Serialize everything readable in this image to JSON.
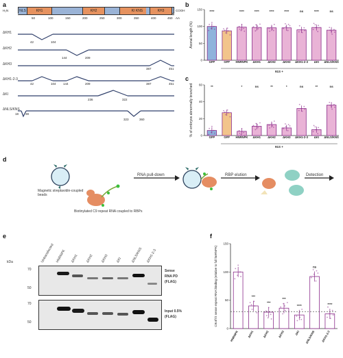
{
  "panels": {
    "a": "a",
    "b": "b",
    "c": "c",
    "d": "d",
    "e": "e",
    "f": "f"
  },
  "panel_a": {
    "n_term": "H₂N",
    "c_term": "COOH",
    "domains": [
      "NLS",
      "KH1",
      "KH2",
      "KI",
      "KNS",
      "KH3"
    ],
    "axis_ticks": [
      "50",
      "100",
      "150",
      "200",
      "250",
      "300",
      "350",
      "400",
      "450"
    ],
    "axis_unit": "AA",
    "constructs": [
      {
        "name": "ΔKH1",
        "labels": [
          "42",
          "104"
        ]
      },
      {
        "name": "ΔKH2",
        "labels": [
          "144",
          "209"
        ]
      },
      {
        "name": "ΔKH3",
        "labels": [
          "387",
          "451"
        ]
      },
      {
        "name": "ΔKH1-2-3",
        "labels": [
          "42",
          "104",
          "144",
          "209",
          "387",
          "451"
        ]
      },
      {
        "name": "ΔKI",
        "labels": [
          "236",
          "322"
        ]
      },
      {
        "name": "ΔNLS/KNS",
        "labels": [
          "18",
          "38",
          "323",
          "360"
        ]
      }
    ]
  },
  "chart_data": [
    {
      "panel": "b",
      "type": "bar",
      "ylabel": "Axonal length (%)",
      "ylim": [
        0,
        150
      ],
      "yticks": [
        "0",
        "50",
        "100",
        "150"
      ],
      "categories": [
        "GFP",
        "GFP",
        "HNRNPK",
        "ΔKH1",
        "ΔKH2",
        "ΔKH3",
        "ΔKH1-2-3",
        "ΔKI",
        "ΔNLS/KNS"
      ],
      "values": [
        100,
        87,
        98,
        97,
        96,
        96,
        90,
        97,
        89
      ],
      "significance": [
        "****",
        "",
        "****",
        "****",
        "****",
        "****",
        "ns",
        "****",
        "ns"
      ],
      "group_label": "91S +",
      "colors": [
        "#8fb3dc",
        "#f2c48b",
        "#e9b3d6",
        "#e9b3d6",
        "#e9b3d6",
        "#e9b3d6",
        "#e9b3d6",
        "#e9b3d6",
        "#e9b3d6"
      ]
    },
    {
      "panel": "c",
      "type": "bar",
      "ylabel": "% of embryos abnormally branched",
      "ylim": [
        0,
        60
      ],
      "yticks": [
        "0",
        "20",
        "40",
        "60"
      ],
      "categories": [
        "GFP",
        "GFP",
        "HNRNPK",
        "ΔKH1",
        "ΔKH2",
        "ΔKH3",
        "ΔKH1-2-3",
        "ΔKI",
        "ΔNLS/KNS"
      ],
      "values": [
        6,
        27,
        5,
        11,
        13,
        9,
        32,
        7,
        36
      ],
      "significance": [
        "**",
        "",
        "*",
        "ns",
        "**",
        "*",
        "ns",
        "**",
        "ns"
      ],
      "group_label": "91S +",
      "colors": [
        "#8fb3dc",
        "#f2c48b",
        "#e9b3d6",
        "#e9b3d6",
        "#e9b3d6",
        "#e9b3d6",
        "#e9b3d6",
        "#e9b3d6",
        "#e9b3d6"
      ]
    },
    {
      "panel": "f",
      "type": "bar",
      "ylabel": "C9orf72 sense repeat RNA binding (relative to full hnRNPK)",
      "ylim": [
        0,
        150
      ],
      "yticks": [
        "0",
        "50",
        "100",
        "150"
      ],
      "categories": [
        "HNRNPK",
        "ΔKH1",
        "ΔKH2",
        "ΔKH3",
        "ΔKI",
        "ΔNLS/KNS",
        "ΔKH1-2-3"
      ],
      "values": [
        100,
        40,
        29,
        36,
        24,
        92,
        26
      ],
      "significance": [
        "",
        "***",
        "***",
        "***",
        "****",
        "ns",
        "****"
      ],
      "dashed_line": 30
    }
  ],
  "panel_d": {
    "bead_label": "Magnetic streptavidin-coupled beads",
    "rna_label": "Biotinylated C9 repeat RNA coupled to RBPs",
    "step1": "RNA pull-down",
    "step2": "RBP elution",
    "step3": "Detection"
  },
  "panel_e": {
    "kda_label": "kDa",
    "lanes": [
      "Untransfected",
      "HNRNPK",
      "ΔKH1",
      "ΔKH2",
      "ΔKH3",
      "ΔKI",
      "ΔNLS/KNS",
      "ΔKH1-2-3"
    ],
    "top_label_1": "Sense",
    "top_label_2": "RNA PD",
    "top_label_3": "(FLAG)",
    "bottom_label_1": "Input 0.5%",
    "bottom_label_2": "(FLAG)",
    "markers_top": [
      "70",
      "50"
    ],
    "markers_bottom": [
      "70",
      "50"
    ]
  }
}
